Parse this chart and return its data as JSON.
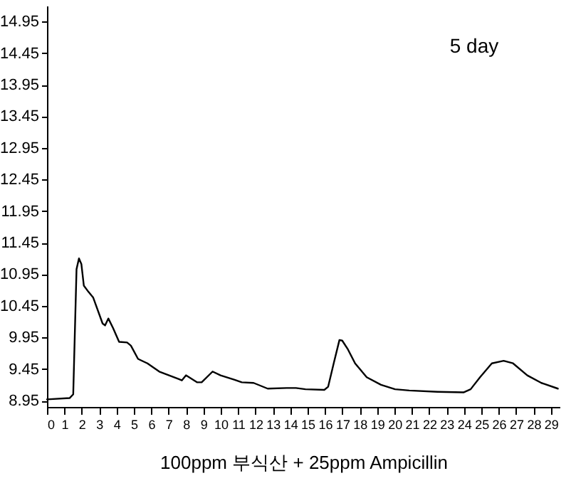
{
  "chart_data": {
    "type": "line",
    "xlabel": "100ppm 부식산 + 25ppm Ampicillin",
    "annotations": [
      "5 day"
    ],
    "x": [
      0,
      1.3,
      1.51,
      1.7,
      1.84,
      1.98,
      2.12,
      2.39,
      2.66,
      3.2,
      3.34,
      3.53,
      3.8,
      4.15,
      4.61,
      4.83,
      5.24,
      5.78,
      6.46,
      7.59,
      7.76,
      8.0,
      8.63,
      8.9,
      9.53,
      9.99,
      10.8,
      11.21,
      11.89,
      12.7,
      13.79,
      14.33,
      14.87,
      15.96,
      16.18,
      16.5,
      16.83,
      16.99,
      17.32,
      17.73,
      18.4,
      19.22,
      20.03,
      20.85,
      22.47,
      23.97,
      24.38,
      24.92,
      25.6,
      26.28,
      26.82,
      27.64,
      28.45,
      29.4
    ],
    "series": [
      {
        "color": "#000000",
        "values": [
          8.97,
          8.99,
          9.05,
          11.03,
          11.2,
          11.11,
          10.77,
          10.67,
          10.58,
          10.17,
          10.14,
          10.25,
          10.1,
          9.88,
          9.87,
          9.82,
          9.61,
          9.54,
          9.41,
          9.29,
          9.27,
          9.35,
          9.24,
          9.24,
          9.41,
          9.35,
          9.28,
          9.24,
          9.23,
          9.14,
          9.15,
          9.15,
          9.13,
          9.12,
          9.17,
          9.54,
          9.91,
          9.9,
          9.76,
          9.54,
          9.32,
          9.2,
          9.13,
          9.11,
          9.09,
          9.08,
          9.13,
          9.32,
          9.54,
          9.58,
          9.54,
          9.35,
          9.23,
          9.14
        ]
      }
    ],
    "xlim": [
      0,
      29.5
    ],
    "xticks": [
      0,
      1,
      2,
      3,
      4,
      5,
      6,
      7,
      8,
      9,
      10,
      11,
      12,
      13,
      14,
      15,
      16,
      17,
      18,
      19,
      20,
      21,
      22,
      23,
      24,
      25,
      26,
      27,
      28,
      29
    ],
    "ylim": [
      8.85,
      15.2
    ],
    "yticks": [
      8.95,
      9.45,
      9.95,
      10.45,
      10.95,
      11.45,
      11.95,
      12.45,
      12.95,
      13.45,
      13.95,
      14.45,
      14.95
    ],
    "grid": false,
    "marker": "none",
    "line_style": "solid"
  }
}
